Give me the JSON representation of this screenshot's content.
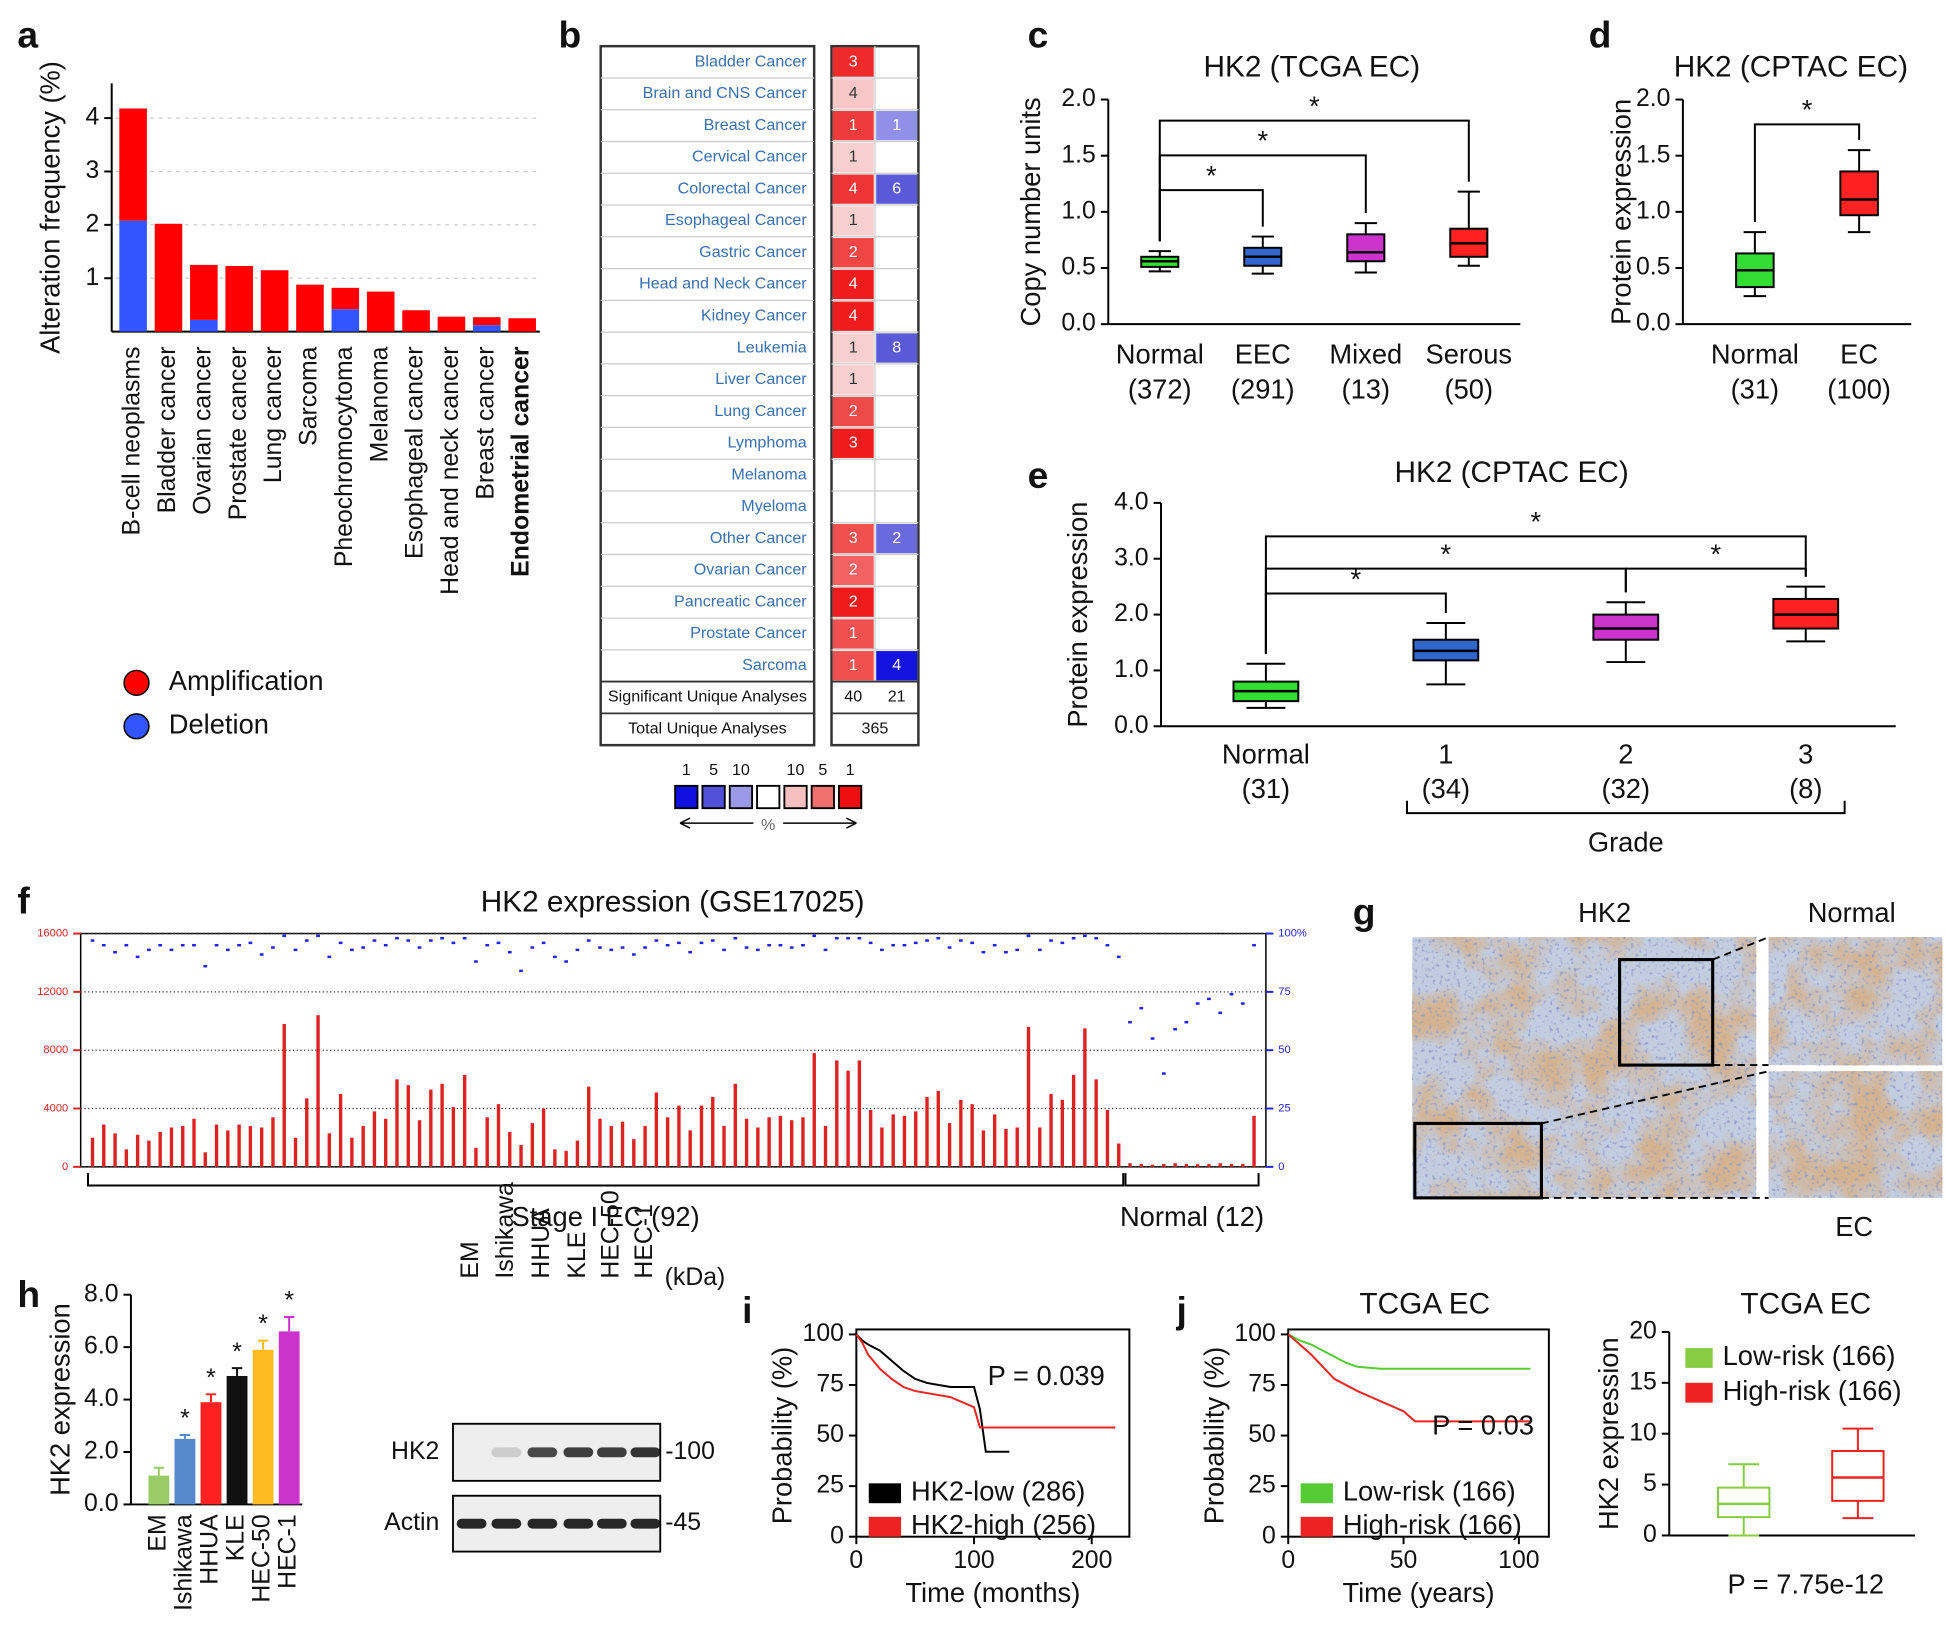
{
  "chart_data": [
    {
      "type": "bar",
      "panel_label": "a",
      "ylabel": "Alteration frequency (%)",
      "categories": [
        "B-cell neoplasms",
        "Bladder cancer",
        "Ovarian cancer",
        "Prostate cancer",
        "Lung cancer",
        "Sarcoma",
        "Pheochromocytoma",
        "Melanoma",
        "Esophageal cancer",
        "Head and neck cancer",
        "Breast cancer",
        "Endometrial cancer"
      ],
      "series": [
        {
          "name": "Amplification",
          "color": "#ff0000",
          "values": [
            2.1,
            2.02,
            1.03,
            1.23,
            1.15,
            0.88,
            0.4,
            0.75,
            0.4,
            0.28,
            0.15,
            0.25
          ]
        },
        {
          "name": "Deletion",
          "color": "#3355ff",
          "values": [
            2.08,
            0,
            0.22,
            0,
            0,
            0,
            0.42,
            0,
            0,
            0,
            0.12,
            0
          ]
        }
      ],
      "ylim": [
        0,
        4.65
      ],
      "yticks": [
        1,
        2,
        3,
        4
      ],
      "grid": true,
      "bold_category_index": 11
    },
    {
      "type": "heatmap",
      "panel_label": "b",
      "rows": [
        "Bladder Cancer",
        "Brain and CNS Cancer",
        "Breast Cancer",
        "Cervical Cancer",
        "Colorectal Cancer",
        "Esophageal Cancer",
        "Gastric Cancer",
        "Head and Neck Cancer",
        "Kidney Cancer",
        "Leukemia",
        "Liver Cancer",
        "Lung Cancer",
        "Lymphoma",
        "Melanoma",
        "Myeloma",
        "Other Cancer",
        "Ovarian Cancer",
        "Pancreatic Cancer",
        "Prostate Cancer",
        "Sarcoma"
      ],
      "up": [
        3,
        4,
        1,
        1,
        4,
        1,
        2,
        4,
        4,
        1,
        1,
        2,
        3,
        null,
        null,
        3,
        2,
        2,
        1,
        1
      ],
      "down": [
        null,
        null,
        1,
        null,
        6,
        null,
        null,
        null,
        null,
        8,
        null,
        null,
        null,
        null,
        null,
        2,
        null,
        null,
        null,
        4
      ],
      "up_colors": [
        "#ee2a2a",
        "#f7c6c6",
        "#ef3b3b",
        "#f8cfcf",
        "#ee3535",
        "#f8cfcf",
        "#ef4545",
        "#ee1c1c",
        "#ee1c1c",
        "#f8cfcf",
        "#f8cfcf",
        "#ef4a4a",
        "#ee1c1c",
        null,
        null,
        "#f05050",
        "#f26262",
        "#ee1c1c",
        "#f05050",
        "#f05050"
      ],
      "down_colors": [
        null,
        null,
        "#9090e8",
        null,
        "#5a5ad8",
        null,
        null,
        null,
        null,
        "#5a5ad8",
        null,
        null,
        null,
        null,
        null,
        "#6a6ade",
        null,
        null,
        null,
        "#1414e0"
      ],
      "footer": [
        {
          "label": "Significant Unique Analyses",
          "values": [
            40,
            21
          ]
        },
        {
          "label": "Total Unique Analyses",
          "values": [
            365
          ]
        }
      ],
      "scale": {
        "labels": [
          1,
          5,
          10,
          10,
          5,
          1
        ],
        "colors": [
          "#1010e0",
          "#5050d8",
          "#9a9ae8",
          "#ffffff",
          "#f6c0c0",
          "#f07070",
          "#ee1010"
        ],
        "unit": "%"
      }
    },
    {
      "type": "box",
      "panel_label": "c",
      "title": "HK2 (TCGA EC)",
      "ylabel": "Copy number units",
      "categories": [
        "Normal",
        "EEC",
        "Mixed",
        "Serous"
      ],
      "n_labels": [
        "(372)",
        "(291)",
        "(13)",
        "(50)"
      ],
      "boxes": [
        {
          "min": 0.47,
          "q1": 0.51,
          "median": 0.56,
          "q3": 0.6,
          "max": 0.65,
          "color": "#33dd33"
        },
        {
          "min": 0.45,
          "q1": 0.52,
          "median": 0.6,
          "q3": 0.68,
          "max": 0.78,
          "color": "#3366cc"
        },
        {
          "min": 0.46,
          "q1": 0.56,
          "median": 0.64,
          "q3": 0.8,
          "max": 0.9,
          "color": "#cc33cc"
        },
        {
          "min": 0.52,
          "q1": 0.6,
          "median": 0.72,
          "q3": 0.85,
          "max": 1.18,
          "color": "#ff2222"
        }
      ],
      "ylim": [
        0,
        2
      ],
      "yticks": [
        {
          "value": 0,
          "label": "0.0"
        },
        0.5,
        {
          "value": 1,
          "label": "1.0"
        },
        1.5,
        {
          "value": 2,
          "label": "2.0"
        }
      ],
      "significance": [
        {
          "from": 0,
          "to": 1,
          "label": "*"
        },
        {
          "from": 0,
          "to": 2,
          "label": "*"
        },
        {
          "from": 0,
          "to": 3,
          "label": "*"
        }
      ]
    },
    {
      "type": "box",
      "panel_label": "d",
      "title": "HK2 (CPTAC EC)",
      "ylabel": "Protein expression",
      "categories": [
        "Normal",
        "EC"
      ],
      "n_labels": [
        "(31)",
        "(100)"
      ],
      "boxes": [
        {
          "min": 0.25,
          "q1": 0.33,
          "median": 0.48,
          "q3": 0.63,
          "max": 0.82,
          "color": "#33dd33"
        },
        {
          "min": 0.82,
          "q1": 0.97,
          "median": 1.11,
          "q3": 1.36,
          "max": 1.55,
          "color": "#ff2222"
        }
      ],
      "ylim": [
        0,
        2
      ],
      "yticks": [
        {
          "value": 0,
          "label": "0.0"
        },
        0.5,
        {
          "value": 1,
          "label": "1.0"
        },
        1.5,
        {
          "value": 2,
          "label": "2.0"
        }
      ],
      "significance": [
        {
          "from": 0,
          "to": 1,
          "label": "*"
        }
      ]
    },
    {
      "type": "box",
      "panel_label": "e",
      "title": "HK2 (CPTAC EC)",
      "ylabel": "Protein expression",
      "categories": [
        "Normal",
        "1",
        "2",
        "3"
      ],
      "n_labels": [
        "(31)",
        "(34)",
        "(32)",
        "(8)"
      ],
      "group": {
        "label": "Grade",
        "count": 3
      },
      "boxes": [
        {
          "min": 0.33,
          "q1": 0.45,
          "median": 0.63,
          "q3": 0.8,
          "max": 1.12,
          "color": "#33dd33"
        },
        {
          "min": 0.75,
          "q1": 1.18,
          "median": 1.35,
          "q3": 1.55,
          "max": 1.85,
          "color": "#3366cc"
        },
        {
          "min": 1.15,
          "q1": 1.55,
          "median": 1.75,
          "q3": 2.0,
          "max": 2.22,
          "color": "#cc33cc"
        },
        {
          "min": 1.52,
          "q1": 1.75,
          "median": 2.0,
          "q3": 2.28,
          "max": 2.5,
          "color": "#ff2222"
        }
      ],
      "ylim": [
        0,
        4
      ],
      "yticks": [
        {
          "value": 0,
          "label": "0.0"
        },
        {
          "value": 1,
          "label": "1.0"
        },
        {
          "value": 2,
          "label": "2.0"
        },
        {
          "value": 3,
          "label": "3.0"
        },
        {
          "value": 4,
          "label": "4.0"
        }
      ],
      "significance": [
        {
          "from": 0,
          "to": 1,
          "label": "*"
        },
        {
          "from": 0,
          "to": 2,
          "label": "*"
        },
        {
          "from": 0,
          "to": 3,
          "label": "*"
        },
        {
          "from": 2,
          "to": 3,
          "label": "*"
        }
      ]
    },
    {
      "type": "bar",
      "panel_label": "f",
      "title": "HK2 expression (GSE17025)",
      "color": "#dd2222",
      "values": [
        2000,
        2900,
        2300,
        1200,
        2200,
        1800,
        2400,
        2700,
        2800,
        3300,
        1000,
        2900,
        2500,
        2900,
        2800,
        2700,
        3400,
        9800,
        2000,
        4700,
        10400,
        2300,
        5000,
        2000,
        2800,
        3800,
        3300,
        6000,
        5600,
        3200,
        5300,
        5700,
        4100,
        6300,
        1300,
        3400,
        4300,
        2400,
        1500,
        3000,
        4000,
        1200,
        1100,
        1800,
        5500,
        3300,
        2800,
        3100,
        1900,
        2800,
        5100,
        3400,
        4200,
        2500,
        4200,
        4800,
        2800,
        5700,
        3300,
        2700,
        3400,
        3500,
        3200,
        3400,
        7800,
        2800,
        7300,
        6600,
        7300,
        3900,
        2700,
        3600,
        3500,
        3800,
        4800,
        5200,
        3000,
        4600,
        4300,
        2500,
        3600,
        2600,
        2700,
        9600,
        2700,
        5000,
        4600,
        6300,
        9500,
        6000,
        3900,
        1600,
        250,
        200,
        150,
        200,
        250,
        200,
        180,
        200,
        250,
        200,
        200,
        3500
      ],
      "y2_values": [
        97,
        95,
        92,
        95,
        90,
        93,
        95,
        93,
        95,
        95,
        86,
        95,
        93,
        95,
        96,
        91,
        94,
        99,
        93,
        97,
        99,
        90,
        96,
        93,
        94,
        97,
        95,
        98,
        97,
        94,
        97,
        98,
        96,
        98,
        88,
        95,
        96,
        92,
        84,
        94,
        96,
        90,
        88,
        93,
        97,
        94,
        93,
        94,
        91,
        94,
        97,
        95,
        96,
        92,
        96,
        97,
        93,
        98,
        94,
        93,
        95,
        95,
        94,
        95,
        99,
        93,
        98,
        98,
        98,
        96,
        93,
        95,
        95,
        96,
        97,
        98,
        94,
        97,
        96,
        92,
        95,
        92,
        93,
        99,
        93,
        97,
        96,
        98,
        99,
        98,
        95,
        90,
        62,
        68,
        55,
        40,
        59,
        62,
        70,
        72,
        66,
        74,
        70,
        95
      ],
      "y2_color": "#2222ee",
      "ylim": [
        0,
        16000
      ],
      "yticks": [
        0,
        4000,
        8000,
        12000,
        16000
      ],
      "y2lim": [
        0,
        100
      ],
      "y2ticks": [
        0,
        25,
        50,
        75,
        {
          "value": 100,
          "label": "100%"
        }
      ],
      "grid": true,
      "groups": [
        {
          "label": "Stage I EC (92)",
          "count": 92
        },
        {
          "label": "Normal (12)",
          "count": 12
        }
      ]
    },
    {
      "type": "image",
      "panel_label": "g",
      "labels": {
        "main": "HK2",
        "inset_top": "Normal",
        "inset_bottom": "EC"
      }
    },
    {
      "type": "bar",
      "panel_label": "h",
      "ylabel": "HK2 expression",
      "categories": [
        "EM",
        "Ishikawa",
        "HHUA",
        "KLE",
        "HEC-50",
        "HEC-1"
      ],
      "values": [
        1.1,
        2.5,
        3.9,
        4.9,
        5.9,
        6.6
      ],
      "errors": [
        0.3,
        0.15,
        0.3,
        0.3,
        0.35,
        0.55
      ],
      "colors": [
        "#99cc66",
        "#5588cc",
        "#ff2222",
        "#111111",
        "#ffbb22",
        "#cc33cc"
      ],
      "significant": [
        false,
        true,
        true,
        true,
        true,
        true
      ],
      "star_label": "*",
      "ylim": [
        0,
        8
      ],
      "yticks": [
        {
          "value": 0,
          "label": "0.0"
        },
        {
          "value": 2,
          "label": "2.0"
        },
        {
          "value": 4,
          "label": "4.0"
        },
        {
          "value": 6,
          "label": "6.0"
        },
        {
          "value": 8,
          "label": "8.0"
        }
      ]
    },
    {
      "type": "blot",
      "lanes": [
        "EM",
        "Ishikawa",
        "HHUA",
        "KLE",
        "HEC-50",
        "HEC-1"
      ],
      "unit_label": "(kDa)",
      "rows": [
        {
          "name": "HK2",
          "marker": "-100",
          "intensity": [
            0,
            0.15,
            0.75,
            0.8,
            0.8,
            0.85
          ]
        },
        {
          "name": "Actin",
          "marker": "-45",
          "intensity": [
            0.9,
            0.9,
            0.9,
            0.9,
            0.9,
            0.9
          ]
        }
      ]
    },
    {
      "type": "survival",
      "panel_label": "i",
      "xlabel": "Time (months)",
      "ylabel": "Probability (%)",
      "xlim": [
        0,
        232
      ],
      "ylim": [
        0,
        100
      ],
      "xticks": [
        0,
        100,
        200
      ],
      "yticks": [
        0,
        25,
        50,
        75,
        100
      ],
      "p_text": "P = 0.039",
      "series": [
        {
          "name": "HK2-low (286)",
          "color": "#000000",
          "x": [
            0,
            5,
            10,
            20,
            30,
            40,
            50,
            60,
            70,
            80,
            100,
            105,
            110,
            130
          ],
          "values": [
            100,
            97,
            95,
            92,
            87,
            82,
            78,
            76,
            75,
            74,
            74,
            63,
            42,
            42
          ]
        },
        {
          "name": "HK2-high (256)",
          "color": "#ee2222",
          "x": [
            0,
            5,
            10,
            20,
            30,
            40,
            50,
            60,
            80,
            100,
            105,
            220
          ],
          "values": [
            100,
            96,
            90,
            83,
            78,
            74,
            72,
            71,
            69,
            64,
            54,
            54
          ]
        }
      ]
    },
    {
      "type": "survival",
      "panel_label": "j",
      "title": "TCGA EC",
      "xlabel": "Time (years)",
      "ylabel": "Probability (%)",
      "xlim": [
        0,
        113
      ],
      "ylim": [
        0,
        100
      ],
      "xticks": [
        0,
        50,
        100
      ],
      "yticks": [
        0,
        25,
        50,
        75,
        100
      ],
      "p_text": "P = 0.03",
      "series": [
        {
          "name": "Low-risk (166)",
          "color": "#55cc33",
          "x": [
            0,
            5,
            10,
            15,
            20,
            25,
            30,
            40,
            105
          ],
          "values": [
            100,
            97,
            95,
            92,
            89,
            86,
            84,
            83,
            83
          ]
        },
        {
          "name": "High-risk (166)",
          "color": "#ee2222",
          "x": [
            0,
            5,
            10,
            15,
            20,
            30,
            40,
            50,
            55,
            105
          ],
          "values": [
            100,
            95,
            90,
            84,
            78,
            72,
            67,
            62,
            57,
            57
          ]
        }
      ]
    },
    {
      "type": "box",
      "title": "TCGA EC",
      "ylabel": "HK2 expression",
      "hollow": true,
      "boxes": [
        {
          "name": "Low-risk (166)",
          "color": "#88cc44",
          "min": 0,
          "q1": 1.8,
          "median": 3.1,
          "q3": 4.7,
          "max": 7.0
        },
        {
          "name": "High-risk (166)",
          "color": "#ee2222",
          "min": 1.7,
          "q1": 3.4,
          "median": 5.7,
          "q3": 8.3,
          "max": 10.5
        }
      ],
      "ylim": [
        0,
        20
      ],
      "yticks": [
        0,
        5,
        10,
        15,
        20
      ],
      "p_text": "P = 7.75e-12"
    }
  ]
}
